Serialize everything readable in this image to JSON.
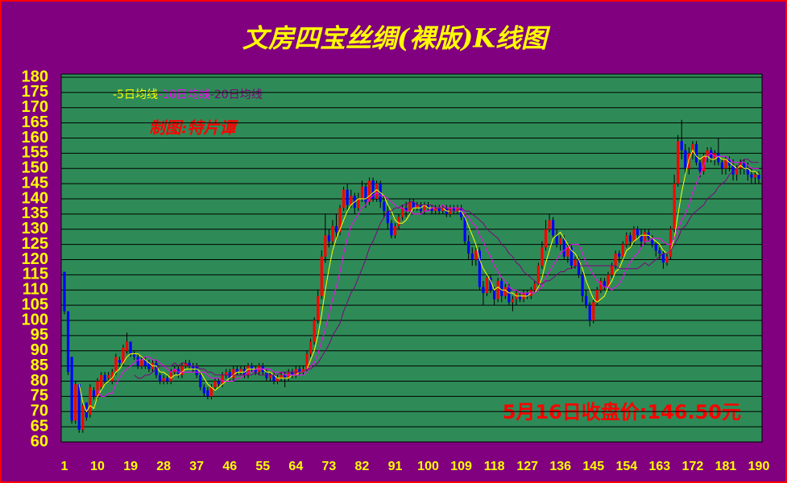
{
  "chart_data": {
    "type": "candlestick",
    "title": "文房四宝丝绸(裸版)K线图",
    "author": "制图:特片谭",
    "annotation": "5月16日收盘价:146.50元",
    "up_color": "#ff0000",
    "down_color": "#0000ff",
    "wick_color": "#000000",
    "grid": true,
    "xlim": [
      1,
      190
    ],
    "xticks": [
      1,
      10,
      19,
      28,
      37,
      46,
      55,
      64,
      73,
      82,
      91,
      100,
      109,
      118,
      127,
      136,
      145,
      154,
      163,
      172,
      181,
      190
    ],
    "ylim": [
      60,
      180
    ],
    "yticks": [
      60,
      65,
      70,
      75,
      80,
      85,
      90,
      95,
      100,
      105,
      110,
      115,
      120,
      125,
      130,
      135,
      140,
      145,
      150,
      155,
      160,
      165,
      170,
      175,
      180
    ],
    "x": [
      1,
      2,
      3,
      4,
      5,
      6,
      7,
      8,
      9,
      10,
      11,
      12,
      13,
      14,
      15,
      16,
      17,
      18,
      19,
      20,
      21,
      22,
      23,
      24,
      25,
      26,
      27,
      28,
      29,
      30,
      31,
      32,
      33,
      34,
      35,
      36,
      37,
      38,
      39,
      40,
      41,
      42,
      43,
      44,
      45,
      46,
      47,
      48,
      49,
      50,
      51,
      52,
      53,
      54,
      55,
      56,
      57,
      58,
      59,
      60,
      61,
      62,
      63,
      64,
      65,
      66,
      67,
      68,
      69,
      70,
      71,
      72,
      73,
      74,
      75,
      76,
      77,
      78,
      79,
      80,
      81,
      82,
      83,
      84,
      85,
      86,
      87,
      88,
      89,
      90,
      91,
      92,
      93,
      94,
      95,
      96,
      97,
      98,
      99,
      100,
      101,
      102,
      103,
      104,
      105,
      106,
      107,
      108,
      109,
      110,
      111,
      112,
      113,
      114,
      115,
      116,
      117,
      118,
      119,
      120,
      121,
      122,
      123,
      124,
      125,
      126,
      127,
      128,
      129,
      130,
      131,
      132,
      133,
      134,
      135,
      136,
      137,
      138,
      139,
      140,
      141,
      142,
      143,
      144,
      145,
      146,
      147,
      148,
      149,
      150,
      151,
      152,
      153,
      154,
      155,
      156,
      157,
      158,
      159,
      160,
      161,
      162,
      163,
      164,
      165,
      166,
      167,
      168,
      169,
      170,
      171,
      172,
      173,
      174,
      175,
      176,
      177,
      178,
      179,
      180,
      181,
      182,
      183,
      184,
      185,
      186,
      187,
      188,
      189,
      190
    ],
    "open": [
      116,
      103,
      88,
      67,
      79,
      64,
      73,
      69,
      77,
      75,
      78,
      82,
      81,
      80,
      83,
      87,
      86,
      90,
      93,
      89,
      88,
      85,
      87,
      86,
      84,
      86,
      82,
      80,
      81,
      80,
      83,
      84,
      82,
      85,
      86,
      85,
      85,
      82,
      78,
      77,
      75,
      78,
      80,
      79,
      82,
      83,
      81,
      84,
      83,
      84,
      82,
      85,
      84,
      83,
      85,
      83,
      81,
      82,
      80,
      81,
      82,
      81,
      83,
      82,
      84,
      83,
      84,
      89,
      93,
      100,
      108,
      121,
      128,
      126,
      131,
      129,
      137,
      143,
      138,
      141,
      137,
      140,
      144,
      139,
      146,
      140,
      145,
      139,
      136,
      132,
      128,
      131,
      134,
      137,
      136,
      139,
      137,
      138,
      136,
      138,
      137,
      136,
      137,
      136,
      137,
      135,
      137,
      136,
      137,
      134,
      126,
      122,
      120,
      123,
      111,
      109,
      114,
      110,
      107,
      113,
      108,
      111,
      106,
      107,
      108,
      107,
      109,
      108,
      110,
      112,
      118,
      124,
      130,
      133,
      128,
      125,
      127,
      121,
      124,
      118,
      120,
      115,
      108,
      105,
      100,
      106,
      110,
      113,
      111,
      115,
      118,
      122,
      121,
      125,
      128,
      126,
      130,
      128,
      126,
      129,
      127,
      125,
      123,
      122,
      119,
      121,
      130,
      145,
      159,
      156,
      150,
      155,
      158,
      152,
      149,
      154,
      156,
      153,
      155,
      152,
      150,
      153,
      151,
      148,
      150,
      152,
      150,
      148,
      147,
      148
    ],
    "high": [
      116,
      103,
      88,
      80,
      79,
      73,
      73,
      79,
      78,
      81,
      83,
      83,
      83,
      84,
      89,
      88,
      92,
      96,
      93,
      90,
      89,
      88,
      88,
      87,
      87,
      87,
      83,
      82,
      82,
      84,
      85,
      85,
      86,
      87,
      87,
      86,
      86,
      83,
      79,
      78,
      79,
      81,
      81,
      83,
      84,
      84,
      85,
      85,
      85,
      85,
      86,
      86,
      85,
      86,
      86,
      84,
      83,
      83,
      82,
      83,
      83,
      84,
      84,
      85,
      85,
      85,
      90,
      94,
      101,
      110,
      123,
      135,
      130,
      133,
      135,
      138,
      144,
      145,
      143,
      142,
      142,
      146,
      145,
      147,
      147,
      146,
      146,
      141,
      138,
      133,
      132,
      135,
      138,
      139,
      140,
      140,
      139,
      139,
      139,
      139,
      138,
      138,
      138,
      138,
      138,
      138,
      138,
      138,
      138,
      135,
      128,
      124,
      124,
      124,
      113,
      115,
      115,
      111,
      114,
      114,
      112,
      112,
      108,
      110,
      109,
      110,
      110,
      111,
      113,
      119,
      126,
      133,
      135,
      134,
      130,
      128,
      128,
      125,
      125,
      121,
      121,
      116,
      110,
      106,
      107,
      111,
      114,
      114,
      116,
      119,
      123,
      123,
      126,
      129,
      129,
      131,
      131,
      130,
      130,
      130,
      128,
      126,
      124,
      123,
      122,
      131,
      148,
      161,
      166,
      158,
      157,
      159,
      159,
      153,
      155,
      157,
      157,
      156,
      160,
      153,
      154,
      154,
      153,
      151,
      153,
      153,
      152,
      150,
      149,
      149
    ],
    "low": [
      102,
      82,
      66,
      66,
      63,
      63,
      67,
      68,
      74,
      74,
      77,
      79,
      80,
      79,
      82,
      85,
      85,
      89,
      88,
      87,
      84,
      84,
      84,
      83,
      83,
      81,
      79,
      79,
      79,
      79,
      82,
      81,
      81,
      84,
      84,
      83,
      81,
      77,
      75,
      74,
      74,
      77,
      78,
      78,
      81,
      80,
      80,
      82,
      82,
      81,
      81,
      83,
      82,
      82,
      82,
      80,
      80,
      79,
      79,
      80,
      78,
      80,
      81,
      81,
      82,
      82,
      83,
      88,
      92,
      99,
      107,
      119,
      124,
      125,
      127,
      128,
      136,
      136,
      137,
      135,
      136,
      139,
      137,
      138,
      139,
      139,
      137,
      134,
      130,
      127,
      127,
      130,
      133,
      134,
      135,
      136,
      136,
      135,
      135,
      136,
      135,
      135,
      135,
      135,
      134,
      134,
      135,
      135,
      133,
      125,
      120,
      118,
      118,
      110,
      105,
      108,
      109,
      105,
      106,
      106,
      107,
      105,
      103,
      105,
      106,
      106,
      107,
      107,
      109,
      111,
      117,
      123,
      129,
      127,
      124,
      123,
      120,
      119,
      117,
      117,
      114,
      106,
      104,
      98,
      99,
      105,
      109,
      110,
      110,
      114,
      117,
      119,
      120,
      124,
      124,
      125,
      127,
      124,
      125,
      126,
      124,
      121,
      120,
      117,
      118,
      120,
      129,
      144,
      153,
      148,
      148,
      153,
      151,
      147,
      148,
      152,
      152,
      151,
      151,
      148,
      148,
      149,
      146,
      146,
      148,
      148,
      146,
      145,
      145,
      145
    ],
    "close": [
      103,
      83,
      67,
      79,
      64,
      72,
      68,
      78,
      75,
      80,
      82,
      80,
      82,
      83,
      88,
      86,
      91,
      93,
      89,
      88,
      85,
      87,
      85,
      84,
      86,
      82,
      80,
      81,
      80,
      83,
      84,
      82,
      85,
      86,
      85,
      84,
      82,
      78,
      76,
      75,
      78,
      80,
      79,
      82,
      83,
      81,
      84,
      83,
      84,
      82,
      85,
      84,
      83,
      85,
      83,
      81,
      82,
      80,
      81,
      82,
      81,
      83,
      82,
      84,
      83,
      84,
      89,
      93,
      100,
      108,
      121,
      128,
      126,
      131,
      129,
      137,
      143,
      138,
      141,
      137,
      140,
      144,
      139,
      146,
      140,
      145,
      139,
      136,
      132,
      128,
      131,
      134,
      137,
      136,
      139,
      137,
      138,
      136,
      138,
      137,
      136,
      137,
      136,
      137,
      135,
      137,
      136,
      137,
      134,
      126,
      122,
      120,
      123,
      111,
      109,
      114,
      110,
      107,
      113,
      108,
      111,
      106,
      107,
      109,
      107,
      109,
      108,
      110,
      112,
      118,
      124,
      130,
      133,
      128,
      125,
      127,
      121,
      124,
      118,
      120,
      115,
      108,
      105,
      100,
      106,
      110,
      113,
      111,
      115,
      118,
      122,
      121,
      125,
      128,
      126,
      130,
      128,
      126,
      129,
      127,
      125,
      123,
      122,
      119,
      121,
      130,
      145,
      159,
      156,
      150,
      155,
      158,
      152,
      149,
      154,
      156,
      153,
      155,
      152,
      150,
      153,
      151,
      148,
      150,
      152,
      150,
      148,
      147,
      148,
      146.5
    ],
    "series": [
      {
        "name": "-5日均线",
        "color": "#ffff00",
        "values": [
          null,
          null,
          null,
          null,
          79,
          73,
          70,
          72,
          71,
          75,
          77,
          79,
          80,
          81,
          83,
          84,
          86,
          88,
          89,
          89,
          89,
          88,
          87,
          86,
          85,
          85,
          83,
          83,
          82,
          81,
          82,
          82,
          83,
          84,
          84,
          84,
          84,
          83,
          81,
          79,
          78,
          77,
          78,
          79,
          80,
          81,
          82,
          83,
          83,
          83,
          84,
          84,
          84,
          84,
          84,
          83,
          83,
          82,
          81,
          81,
          81,
          81,
          82,
          82,
          83,
          83,
          84,
          87,
          90,
          95,
          102,
          110,
          117,
          123,
          127,
          130,
          133,
          136,
          138,
          139,
          140,
          140,
          140,
          141,
          142,
          143,
          142,
          141,
          138,
          136,
          133,
          132,
          132,
          133,
          135,
          137,
          137,
          137,
          138,
          137,
          137,
          137,
          137,
          137,
          136,
          136,
          136,
          136,
          136,
          134,
          131,
          128,
          125,
          120,
          117,
          115,
          113,
          110,
          111,
          110,
          110,
          109,
          109,
          108,
          108,
          108,
          108,
          109,
          109,
          111,
          114,
          119,
          123,
          127,
          128,
          129,
          127,
          125,
          123,
          122,
          120,
          117,
          113,
          110,
          107,
          106,
          107,
          108,
          111,
          113,
          116,
          117,
          120,
          123,
          124,
          126,
          127,
          128,
          128,
          128,
          127,
          126,
          125,
          123,
          122,
          123,
          127,
          135,
          142,
          148,
          153,
          156,
          154,
          153,
          154,
          154,
          153,
          153,
          154,
          153,
          153,
          152,
          151,
          150,
          151,
          150,
          150,
          149,
          149,
          148
        ]
      },
      {
        "name": "-10日均线",
        "color": "#ff00ff",
        "values": [
          null,
          null,
          null,
          null,
          null,
          null,
          null,
          null,
          null,
          77,
          75,
          75,
          76,
          76,
          79,
          81,
          83,
          84,
          85,
          86,
          87,
          87,
          88,
          88,
          87,
          87,
          86,
          85,
          84,
          83,
          84,
          83,
          83,
          83,
          83,
          83,
          83,
          83,
          83,
          82,
          81,
          81,
          81,
          80,
          80,
          80,
          80,
          81,
          81,
          82,
          83,
          83,
          84,
          84,
          84,
          84,
          84,
          83,
          83,
          83,
          82,
          82,
          82,
          82,
          82,
          82,
          83,
          85,
          86,
          89,
          93,
          97,
          102,
          107,
          111,
          116,
          122,
          127,
          131,
          133,
          135,
          137,
          138,
          140,
          141,
          142,
          141,
          141,
          140,
          139,
          138,
          137,
          137,
          136,
          136,
          135,
          135,
          135,
          136,
          136,
          137,
          137,
          137,
          138,
          137,
          137,
          137,
          137,
          137,
          135,
          134,
          132,
          131,
          128,
          126,
          123,
          121,
          118,
          116,
          114,
          113,
          111,
          110,
          110,
          109,
          109,
          109,
          109,
          109,
          110,
          111,
          114,
          116,
          118,
          120,
          122,
          123,
          124,
          125,
          125,
          125,
          122,
          119,
          117,
          115,
          113,
          112,
          111,
          111,
          110,
          111,
          112,
          114,
          117,
          119,
          121,
          122,
          124,
          126,
          126,
          127,
          127,
          127,
          126,
          125,
          125,
          127,
          130,
          133,
          135,
          138,
          142,
          145,
          148,
          151,
          154,
          155,
          154,
          154,
          154,
          154,
          153,
          152,
          152,
          152,
          152,
          151,
          150,
          150,
          150
        ]
      },
      {
        "name": "-20日均线",
        "color": "#800080",
        "values": [
          null,
          null,
          null,
          null,
          null,
          null,
          null,
          null,
          null,
          null,
          null,
          null,
          null,
          null,
          null,
          null,
          null,
          null,
          null,
          82,
          81,
          81,
          82,
          82,
          83,
          84,
          85,
          85,
          85,
          85,
          86,
          85,
          86,
          86,
          85,
          85,
          85,
          84,
          84,
          83,
          83,
          82,
          82,
          82,
          82,
          82,
          82,
          82,
          82,
          82,
          82,
          82,
          83,
          82,
          82,
          82,
          82,
          82,
          82,
          83,
          83,
          83,
          83,
          83,
          83,
          83,
          84,
          84,
          85,
          86,
          88,
          90,
          92,
          95,
          97,
          99,
          103,
          106,
          109,
          111,
          114,
          117,
          120,
          124,
          126,
          129,
          132,
          134,
          136,
          136,
          137,
          137,
          138,
          138,
          139,
          139,
          138,
          138,
          138,
          138,
          138,
          137,
          137,
          137,
          137,
          136,
          136,
          136,
          137,
          136,
          136,
          135,
          134,
          133,
          132,
          130,
          129,
          128,
          127,
          125,
          124,
          122,
          121,
          119,
          118,
          116,
          115,
          114,
          113,
          112,
          112,
          113,
          113,
          114,
          115,
          116,
          116,
          117,
          117,
          118,
          118,
          118,
          118,
          118,
          118,
          118,
          118,
          118,
          118,
          118,
          118,
          117,
          117,
          117,
          117,
          117,
          117,
          118,
          119,
          118,
          119,
          120,
          121,
          122,
          122,
          123,
          125,
          127,
          130,
          131,
          133,
          135,
          136,
          137,
          138,
          140,
          141,
          142,
          144,
          145,
          146,
          148,
          149,
          150,
          152,
          153,
          153,
          152,
          152,
          152
        ]
      }
    ]
  }
}
